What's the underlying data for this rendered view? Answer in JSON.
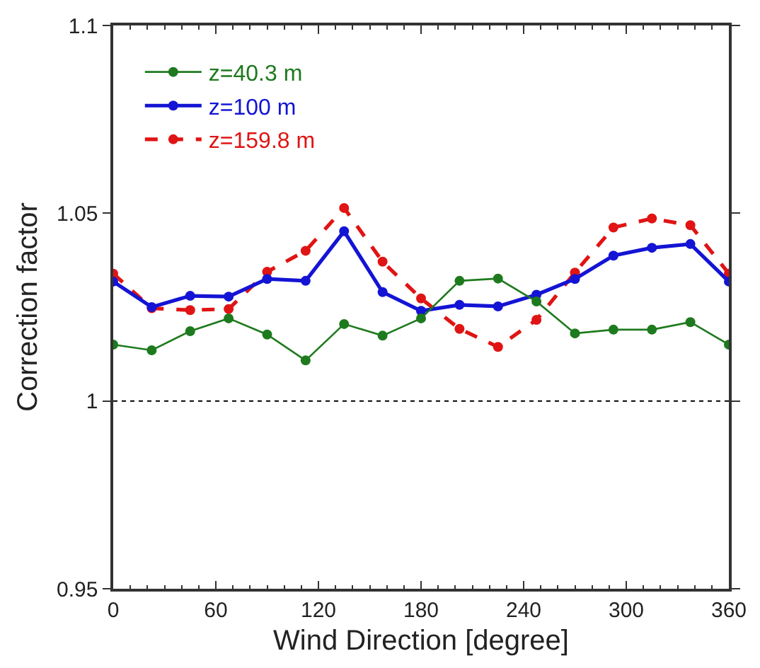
{
  "chart_data": {
    "type": "line",
    "xlabel": "Wind Direction [degree]",
    "ylabel": "Correction factor",
    "x": [
      0,
      22.5,
      45,
      67.5,
      90,
      112.5,
      135,
      157.5,
      180,
      202.5,
      225,
      247.5,
      270,
      292.5,
      315,
      337.5,
      360
    ],
    "series": [
      {
        "name": "z=40.3 m",
        "color": "#1e7a1e",
        "line_style": "solid",
        "values": [
          1.015,
          1.0135,
          1.0186,
          1.022,
          1.0177,
          1.0108,
          1.0205,
          1.0174,
          1.022,
          1.032,
          1.0326,
          1.0265,
          1.018,
          1.019,
          1.019,
          1.021,
          1.015
        ]
      },
      {
        "name": "z=100 m",
        "color": "#1414d4",
        "line_style": "solid",
        "values": [
          1.0318,
          1.025,
          1.028,
          1.0278,
          1.0325,
          1.032,
          1.0452,
          1.029,
          1.024,
          1.0256,
          1.0252,
          1.0283,
          1.0325,
          1.0387,
          1.0408,
          1.0418,
          1.0318
        ]
      },
      {
        "name": "z=159.8 m",
        "color": "#e01414",
        "line_style": "dashed",
        "values": [
          1.0339,
          1.0247,
          1.0242,
          1.0245,
          1.0344,
          1.04,
          1.0514,
          1.0371,
          1.0273,
          1.0192,
          1.0144,
          1.0216,
          1.0342,
          1.0462,
          1.0486,
          1.0468,
          1.0339
        ]
      }
    ],
    "xlim": [
      0,
      360
    ],
    "xticks": [
      0,
      60,
      120,
      180,
      240,
      300,
      360
    ],
    "ylim": [
      0.95,
      1.1
    ],
    "yticks": [
      0.95,
      1,
      1.05,
      1.1
    ],
    "ref_lines": [
      {
        "axis": "y",
        "value": 1,
        "line_style": "dotted",
        "color": "#000000"
      }
    ],
    "grid": false,
    "legend": "top left",
    "marker": "circle"
  }
}
